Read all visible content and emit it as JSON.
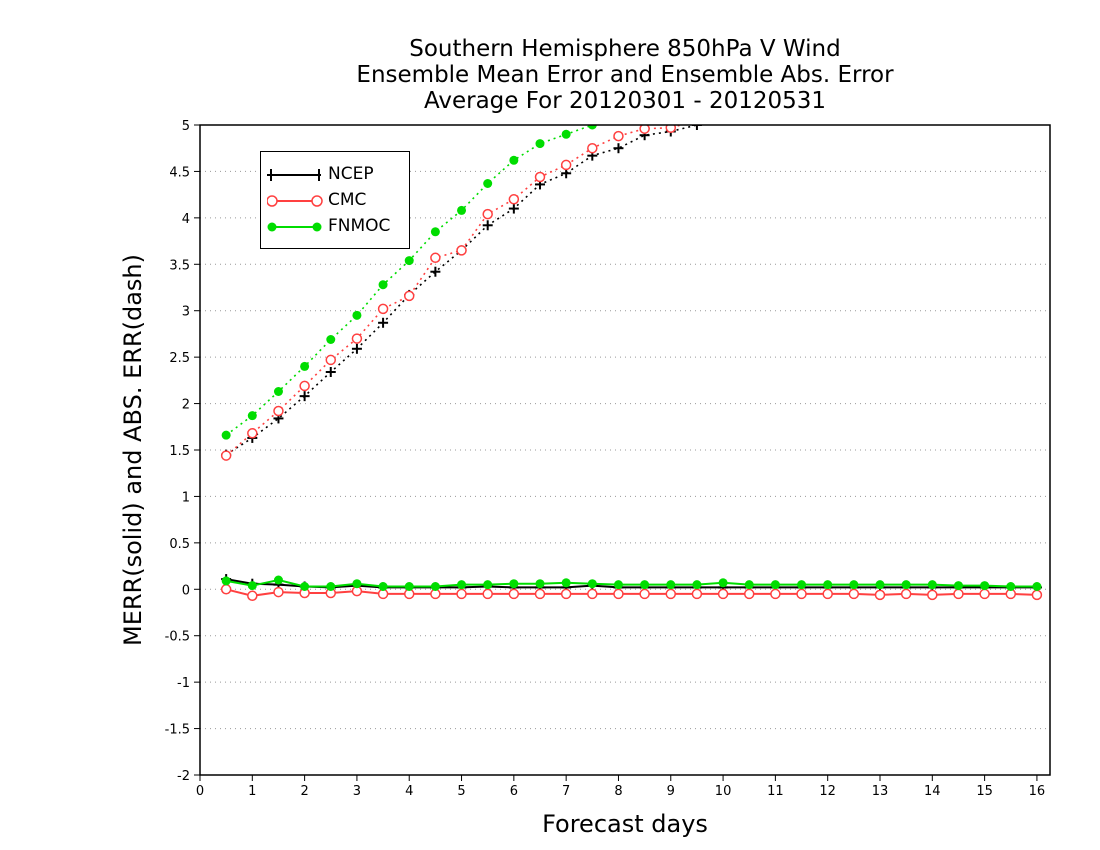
{
  "chart_data": {
    "type": "line",
    "title": [
      "Southern Hemisphere 850hPa V Wind",
      "Ensemble Mean Error and Ensemble Abs. Error",
      "Average For 20120301 - 20120531"
    ],
    "xlabel": "Forecast days",
    "ylabel": "MERR(solid) and ABS. ERR(dash)",
    "xlim": [
      0,
      16.25
    ],
    "ylim": [
      -2,
      5
    ],
    "x_ticks": [
      "0",
      "1",
      "2",
      "3",
      "4",
      "5",
      "6",
      "7",
      "8",
      "9",
      "10",
      "11",
      "12",
      "13",
      "14",
      "15",
      "16"
    ],
    "y_ticks": [
      "5",
      "4.5",
      "4",
      "3.5",
      "3",
      "2.5",
      "2",
      "1.5",
      "1",
      "0.5",
      "0",
      "-0.5",
      "-1",
      "-1.5",
      "-2"
    ],
    "grid": true,
    "legend_position": "top-left",
    "x": [
      0.5,
      1,
      1.5,
      2,
      2.5,
      3,
      3.5,
      4,
      4.5,
      5,
      5.5,
      6,
      6.5,
      7,
      7.5,
      8,
      8.5,
      9,
      9.5,
      10,
      10.5,
      11,
      11.5,
      12,
      12.5,
      13,
      13.5,
      14,
      14.5,
      15,
      15.5,
      16
    ],
    "series": [
      {
        "name": "NCEP",
        "color": "#000000",
        "marker": "plus",
        "merr": [
          0.11,
          0.06,
          0.05,
          0.03,
          0.02,
          0.04,
          0.02,
          0.02,
          0.02,
          0.02,
          0.03,
          0.02,
          0.02,
          0.02,
          0.04,
          0.02,
          0.02,
          0.02,
          0.02,
          0.02,
          0.02,
          0.02,
          0.02,
          0.02,
          0.02,
          0.02,
          0.02,
          0.02,
          0.02,
          0.02,
          0.02,
          0.02
        ],
        "abs_err": [
          1.45,
          1.63,
          1.84,
          2.08,
          2.34,
          2.59,
          2.87,
          3.17,
          3.42,
          3.65,
          3.92,
          4.1,
          4.36,
          4.48,
          4.67,
          4.75,
          4.89,
          4.93,
          5.0,
          5.05,
          5.1,
          5.15,
          5.2,
          5.25,
          5.3,
          5.35,
          5.4,
          5.45,
          5.5,
          5.55,
          5.6,
          5.65
        ]
      },
      {
        "name": "CMC",
        "color": "#ff4040",
        "marker": "open-circle",
        "merr": [
          0.0,
          -0.07,
          -0.03,
          -0.04,
          -0.04,
          -0.02,
          -0.05,
          -0.05,
          -0.05,
          -0.05,
          -0.05,
          -0.05,
          -0.05,
          -0.05,
          -0.05,
          -0.05,
          -0.05,
          -0.05,
          -0.05,
          -0.05,
          -0.05,
          -0.05,
          -0.05,
          -0.05,
          -0.05,
          -0.06,
          -0.05,
          -0.06,
          -0.05,
          -0.05,
          -0.05,
          -0.06
        ],
        "abs_err": [
          1.44,
          1.68,
          1.92,
          2.19,
          2.47,
          2.7,
          3.02,
          3.16,
          3.57,
          3.65,
          4.04,
          4.2,
          4.44,
          4.57,
          4.75,
          4.88,
          4.96,
          4.97,
          5.05,
          5.1,
          5.15,
          5.2,
          5.25,
          5.3,
          5.35,
          5.4,
          5.45,
          5.5,
          5.55,
          5.6,
          5.65,
          5.7
        ]
      },
      {
        "name": "FNMOC",
        "color": "#00dd00",
        "marker": "filled-circle",
        "merr": [
          0.09,
          0.04,
          0.1,
          0.03,
          0.03,
          0.06,
          0.03,
          0.03,
          0.03,
          0.05,
          0.05,
          0.06,
          0.06,
          0.07,
          0.06,
          0.05,
          0.05,
          0.05,
          0.05,
          0.07,
          0.05,
          0.05,
          0.05,
          0.05,
          0.05,
          0.05,
          0.05,
          0.05,
          0.04,
          0.04,
          0.03,
          0.03
        ],
        "abs_err": [
          1.66,
          1.87,
          2.13,
          2.4,
          2.69,
          2.95,
          3.28,
          3.54,
          3.85,
          4.08,
          4.37,
          4.62,
          4.8,
          4.9,
          5.0,
          5.05,
          5.1,
          5.15,
          5.2,
          5.25,
          5.3,
          5.35,
          5.4,
          5.45,
          5.5,
          5.55,
          5.6,
          5.65,
          5.7,
          5.75,
          5.8,
          5.85
        ]
      }
    ]
  }
}
